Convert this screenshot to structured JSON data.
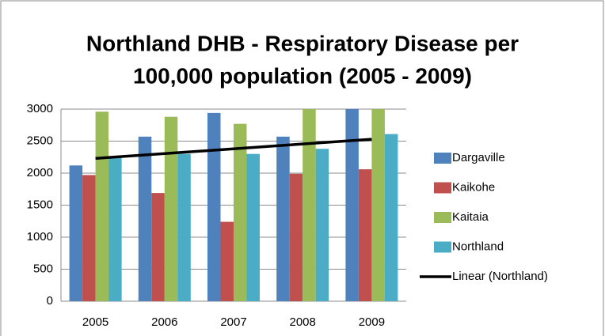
{
  "chart_data": {
    "type": "bar",
    "title": [
      "Northland DHB - Respiratory Disease per",
      "100,000 population  (2005 - 2009)"
    ],
    "categories": [
      "2005",
      "2006",
      "2007",
      "2008",
      "2009"
    ],
    "series": [
      {
        "name": "Dargaville",
        "color": "#4f81bd",
        "values": [
          2120,
          2570,
          2940,
          2570,
          3000
        ]
      },
      {
        "name": "Kaikohe",
        "color": "#c0504d",
        "values": [
          1970,
          1690,
          1240,
          1990,
          2060
        ]
      },
      {
        "name": "Kaitaia",
        "color": "#9bbb59",
        "values": [
          2960,
          2880,
          2770,
          3000,
          3000
        ]
      },
      {
        "name": "Northland",
        "color": "#4bacc6",
        "values": [
          2250,
          2300,
          2300,
          2380,
          2610
        ]
      },
      {
        "name": "Linear (Northland)",
        "color": "#000000",
        "type": "line",
        "values": [
          2230,
          2305,
          2380,
          2455,
          2530
        ]
      }
    ],
    "ylim": [
      0,
      3000
    ],
    "yticks": [
      0,
      500,
      1000,
      1500,
      2000,
      2500,
      3000
    ],
    "grid": true,
    "legend": "right"
  }
}
